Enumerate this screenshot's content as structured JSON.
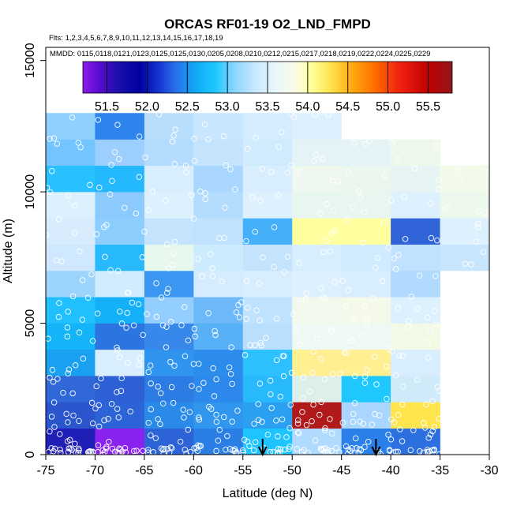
{
  "chart_data": {
    "type": "heatmap",
    "title": "ORCAS RF01-19 O2_LND_FMPD",
    "flights_line": "Flts: 1,2,3,4,5,6,7,8,9,10,11,12,13,14,15,16,17,18,19",
    "dates_line": "MMDD: 0115,0118,0121,0123,0125,0125,0130,0205,0208,0210,0212,0215,0217,0218,0219,0222,0224,0225,0229",
    "xlabel": "Latitude (deg N)",
    "ylabel": "Altitude (m)",
    "xlim": [
      -75,
      -30
    ],
    "ylim": [
      0,
      15500
    ],
    "x_ticks": [
      -75,
      -70,
      -65,
      -60,
      -55,
      -50,
      -45,
      -40,
      -35,
      -30
    ],
    "y_ticks": [
      0,
      5000,
      10000,
      15000
    ],
    "colorbar": {
      "range": [
        51.2,
        55.8
      ],
      "ticks": [
        "51.5",
        "52.0",
        "52.5",
        "53.0",
        "53.5",
        "54.0",
        "54.5",
        "55.0",
        "55.5"
      ],
      "tick_values": [
        51.5,
        52.0,
        52.5,
        53.0,
        53.5,
        54.0,
        54.5,
        55.0,
        55.5
      ],
      "stops": [
        {
          "v": 51.2,
          "c": "#8a1ee8"
        },
        {
          "v": 51.4,
          "c": "#5a0bd0"
        },
        {
          "v": 51.65,
          "c": "#1a0fa8"
        },
        {
          "v": 51.9,
          "c": "#0000a0"
        },
        {
          "v": 52.15,
          "c": "#1535d2"
        },
        {
          "v": 52.35,
          "c": "#2a6fe8"
        },
        {
          "v": 52.6,
          "c": "#0fa8f5"
        },
        {
          "v": 52.85,
          "c": "#1ec8ff"
        },
        {
          "v": 53.1,
          "c": "#8fd6ff"
        },
        {
          "v": 53.35,
          "c": "#c9e8ff"
        },
        {
          "v": 53.6,
          "c": "#eaf7fb"
        },
        {
          "v": 53.85,
          "c": "#fbfbe8"
        },
        {
          "v": 54.05,
          "c": "#ffff9a"
        },
        {
          "v": 54.3,
          "c": "#ffe14a"
        },
        {
          "v": 54.55,
          "c": "#ffaa10"
        },
        {
          "v": 54.85,
          "c": "#ff6a00"
        },
        {
          "v": 55.15,
          "c": "#f02010"
        },
        {
          "v": 55.5,
          "c": "#c00000"
        },
        {
          "v": 55.8,
          "c": "#901818"
        }
      ]
    },
    "cell_width_deg": 5,
    "cell_height_m": 1000,
    "columns_lat_start": [
      -75,
      -70,
      -65,
      -60,
      -55,
      -50,
      -45,
      -40,
      -35
    ],
    "cells": [
      {
        "lat": -75,
        "alt": 0,
        "color": "#2020b8"
      },
      {
        "lat": -75,
        "alt": 1000,
        "color": "#2a55cc"
      },
      {
        "lat": -75,
        "alt": 2000,
        "color": "#3068d8"
      },
      {
        "lat": -75,
        "alt": 3000,
        "color": "#1aa0f0"
      },
      {
        "lat": -75,
        "alt": 4000,
        "color": "#14b4f8"
      },
      {
        "lat": -75,
        "alt": 5000,
        "color": "#20c0ff"
      },
      {
        "lat": -75,
        "alt": 6000,
        "color": "#9cd4fb"
      },
      {
        "lat": -75,
        "alt": 7000,
        "color": "#cfe8fe"
      },
      {
        "lat": -75,
        "alt": 8000,
        "color": "#d8ecfe"
      },
      {
        "lat": -75,
        "alt": 9000,
        "color": "#dcf0fe"
      },
      {
        "lat": -75,
        "alt": 10000,
        "color": "#28c0ff"
      },
      {
        "lat": -75,
        "alt": 11000,
        "color": "#74c4ff"
      },
      {
        "lat": -75,
        "alt": 12000,
        "color": "#90d0ff"
      },
      {
        "lat": -70,
        "alt": 0,
        "color": "#8a22ee"
      },
      {
        "lat": -70,
        "alt": 1000,
        "color": "#2c64d8"
      },
      {
        "lat": -70,
        "alt": 2000,
        "color": "#2c60d4"
      },
      {
        "lat": -70,
        "alt": 3000,
        "color": "#d8eefe"
      },
      {
        "lat": -70,
        "alt": 4000,
        "color": "#2c74e0"
      },
      {
        "lat": -70,
        "alt": 5000,
        "color": "#14b0f8"
      },
      {
        "lat": -70,
        "alt": 6000,
        "color": "#d0ecfe"
      },
      {
        "lat": -70,
        "alt": 7000,
        "color": "#28b8fc"
      },
      {
        "lat": -70,
        "alt": 8000,
        "color": "#8ccefe"
      },
      {
        "lat": -70,
        "alt": 9000,
        "color": "#8ccafe"
      },
      {
        "lat": -70,
        "alt": 10000,
        "color": "#24b8fc"
      },
      {
        "lat": -70,
        "alt": 11000,
        "color": "#9ccffe"
      },
      {
        "lat": -70,
        "alt": 12000,
        "color": "#2c84ec"
      },
      {
        "lat": -65,
        "alt": 0,
        "color": "#2c64d8"
      },
      {
        "lat": -65,
        "alt": 1000,
        "color": "#2a8ae8"
      },
      {
        "lat": -65,
        "alt": 2000,
        "color": "#2c7ce4"
      },
      {
        "lat": -65,
        "alt": 3000,
        "color": "#2e94ee"
      },
      {
        "lat": -65,
        "alt": 4000,
        "color": "#3888ec"
      },
      {
        "lat": -65,
        "alt": 5000,
        "color": "#94cefe"
      },
      {
        "lat": -65,
        "alt": 6000,
        "color": "#3a96f0"
      },
      {
        "lat": -65,
        "alt": 7000,
        "color": "#e6f7ee"
      },
      {
        "lat": -65,
        "alt": 8000,
        "color": "#c4e4fe"
      },
      {
        "lat": -65,
        "alt": 9000,
        "color": "#dcf0fe"
      },
      {
        "lat": -65,
        "alt": 10000,
        "color": "#d8eefe"
      },
      {
        "lat": -65,
        "alt": 11000,
        "color": "#b4dcfe"
      },
      {
        "lat": -65,
        "alt": 12000,
        "color": "#b8defe"
      },
      {
        "lat": -60,
        "alt": 0,
        "color": "#2a7ee4"
      },
      {
        "lat": -60,
        "alt": 1000,
        "color": "#3096ee"
      },
      {
        "lat": -60,
        "alt": 2000,
        "color": "#2c88ea"
      },
      {
        "lat": -60,
        "alt": 3000,
        "color": "#2c8cec"
      },
      {
        "lat": -60,
        "alt": 4000,
        "color": "#58b0f6"
      },
      {
        "lat": -60,
        "alt": 5000,
        "color": "#6cb8f8"
      },
      {
        "lat": -60,
        "alt": 6000,
        "color": "#d4ecfe"
      },
      {
        "lat": -60,
        "alt": 7000,
        "color": "#ccecfe"
      },
      {
        "lat": -60,
        "alt": 8000,
        "color": "#c0e2fe"
      },
      {
        "lat": -60,
        "alt": 9000,
        "color": "#b4dcfe"
      },
      {
        "lat": -60,
        "alt": 10000,
        "color": "#a8d6fe"
      },
      {
        "lat": -60,
        "alt": 11000,
        "color": "#c4e4fe"
      },
      {
        "lat": -60,
        "alt": 12000,
        "color": "#c8e6fe"
      },
      {
        "lat": -55,
        "alt": 0,
        "color": "#1ec4ff"
      },
      {
        "lat": -55,
        "alt": 1000,
        "color": "#2ca0f0"
      },
      {
        "lat": -55,
        "alt": 2000,
        "color": "#28b8fc"
      },
      {
        "lat": -55,
        "alt": 3000,
        "color": "#2cc0ff"
      },
      {
        "lat": -55,
        "alt": 4000,
        "color": "#b8e0fe"
      },
      {
        "lat": -55,
        "alt": 5000,
        "color": "#bfe2fe"
      },
      {
        "lat": -55,
        "alt": 6000,
        "color": "#d8eefe"
      },
      {
        "lat": -55,
        "alt": 7000,
        "color": "#c4e4fe"
      },
      {
        "lat": -55,
        "alt": 8000,
        "color": "#44b0fa"
      },
      {
        "lat": -55,
        "alt": 9000,
        "color": "#dcf0fe"
      },
      {
        "lat": -55,
        "alt": 10000,
        "color": "#d8eefe"
      },
      {
        "lat": -55,
        "alt": 11000,
        "color": "#d0eafe"
      },
      {
        "lat": -55,
        "alt": 12000,
        "color": "#d4ecfe"
      },
      {
        "lat": -50,
        "alt": 0,
        "color": "#b0dafe"
      },
      {
        "lat": -50,
        "alt": 1000,
        "color": "#b01a1a"
      },
      {
        "lat": -50,
        "alt": 2000,
        "color": "#dcefea"
      },
      {
        "lat": -50,
        "alt": 3000,
        "color": "#ffef90"
      },
      {
        "lat": -50,
        "alt": 4000,
        "color": "#eef8f4"
      },
      {
        "lat": -50,
        "alt": 5000,
        "color": "#f2f8ec"
      },
      {
        "lat": -50,
        "alt": 6000,
        "color": "#dcf0fe"
      },
      {
        "lat": -50,
        "alt": 7000,
        "color": "#d6eefe"
      },
      {
        "lat": -50,
        "alt": 8000,
        "color": "#ffffa0"
      },
      {
        "lat": -50,
        "alt": 9000,
        "color": "#e8f6f0"
      },
      {
        "lat": -50,
        "alt": 10000,
        "color": "#eef8ee"
      },
      {
        "lat": -50,
        "alt": 11000,
        "color": "#e4f4f6"
      },
      {
        "lat": -50,
        "alt": 12000,
        "color": "#dcf0fe"
      },
      {
        "lat": -45,
        "alt": 0,
        "color": "#2a80e8"
      },
      {
        "lat": -45,
        "alt": 1000,
        "color": "#a8d6fe"
      },
      {
        "lat": -45,
        "alt": 2000,
        "color": "#1ec8ff"
      },
      {
        "lat": -45,
        "alt": 3000,
        "color": "#ffef90"
      },
      {
        "lat": -45,
        "alt": 4000,
        "color": "#eef8f4"
      },
      {
        "lat": -45,
        "alt": 5000,
        "color": "#f4f9ea"
      },
      {
        "lat": -45,
        "alt": 6000,
        "color": "#d8eefe"
      },
      {
        "lat": -45,
        "alt": 7000,
        "color": "#d0eafe"
      },
      {
        "lat": -45,
        "alt": 8000,
        "color": "#ffffa0"
      },
      {
        "lat": -45,
        "alt": 9000,
        "color": "#e8f6f0"
      },
      {
        "lat": -45,
        "alt": 10000,
        "color": "#eaf6ee"
      },
      {
        "lat": -45,
        "alt": 11000,
        "color": "#e4f4f6"
      },
      {
        "lat": -40,
        "alt": 0,
        "color": "#2c70e0"
      },
      {
        "lat": -40,
        "alt": 1000,
        "color": "#ffe44e"
      },
      {
        "lat": -40,
        "alt": 2000,
        "color": "#cfeaf8"
      },
      {
        "lat": -40,
        "alt": 3000,
        "color": "#d8eefe"
      },
      {
        "lat": -40,
        "alt": 4000,
        "color": "#f2f9e4"
      },
      {
        "lat": -40,
        "alt": 5000,
        "color": "#dcf0fe"
      },
      {
        "lat": -40,
        "alt": 6000,
        "color": "#b0dafe"
      },
      {
        "lat": -40,
        "alt": 7000,
        "color": "#c0e2fe"
      },
      {
        "lat": -40,
        "alt": 8000,
        "color": "#3064d8"
      },
      {
        "lat": -40,
        "alt": 9000,
        "color": "#dcf0fe"
      },
      {
        "lat": -40,
        "alt": 10000,
        "color": "#e6f5f4"
      },
      {
        "lat": -40,
        "alt": 11000,
        "color": "#eef8ea"
      },
      {
        "lat": -35,
        "alt": 7000,
        "color": "#c8e6fe"
      },
      {
        "lat": -35,
        "alt": 8000,
        "color": "#dcf0fe"
      },
      {
        "lat": -35,
        "alt": 9000,
        "color": "#eef9ee"
      },
      {
        "lat": -35,
        "alt": 10000,
        "color": "#f2faea"
      }
    ],
    "arrows_lat": [
      -53,
      -41.5
    ],
    "samples_note": "open white circles mark individual measurements"
  }
}
